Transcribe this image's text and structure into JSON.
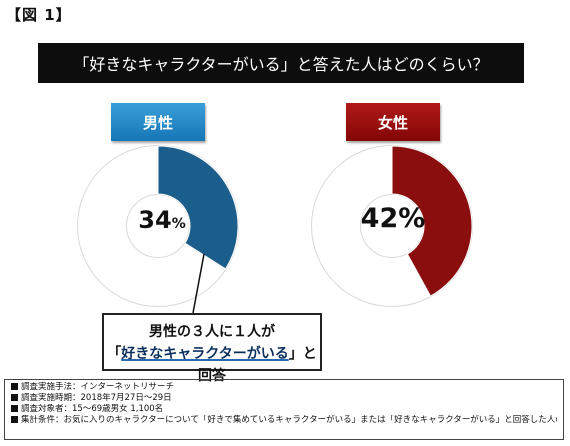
{
  "figure_label": "【図 1】",
  "colors": {
    "male": "#1b5e8c",
    "female": "#8b0e0e",
    "remainder": "#ffffff"
  },
  "chart_data": [
    {
      "type": "pie",
      "title": "「好きなキャラクターがいる」と答えた人はどのくらい？",
      "name": "男性",
      "value": 34,
      "value_label": "34",
      "unit": "%"
    },
    {
      "type": "pie",
      "title": "「好きなキャラクターがいる」と答えた人はどのくらい？",
      "name": "女性",
      "value": 42,
      "value_label": "42%"
    }
  ],
  "callout": {
    "line1": "男性の３人に１人が",
    "quote_open": "「",
    "highlight": "好きなキャラクターがいる",
    "quote_close": "」と回答"
  },
  "notes": [
    "調査実施手法：インターネットリサーチ",
    "調査実施時期：2018年7月27日～29日",
    "調査対象者：15～69歳男女 1,100名",
    "集計条件：お気に入りのキャラクターについて「好きで集めているキャラクターがいる」または「好きなキャラクターがいる」と回答した人の割合（%）"
  ]
}
